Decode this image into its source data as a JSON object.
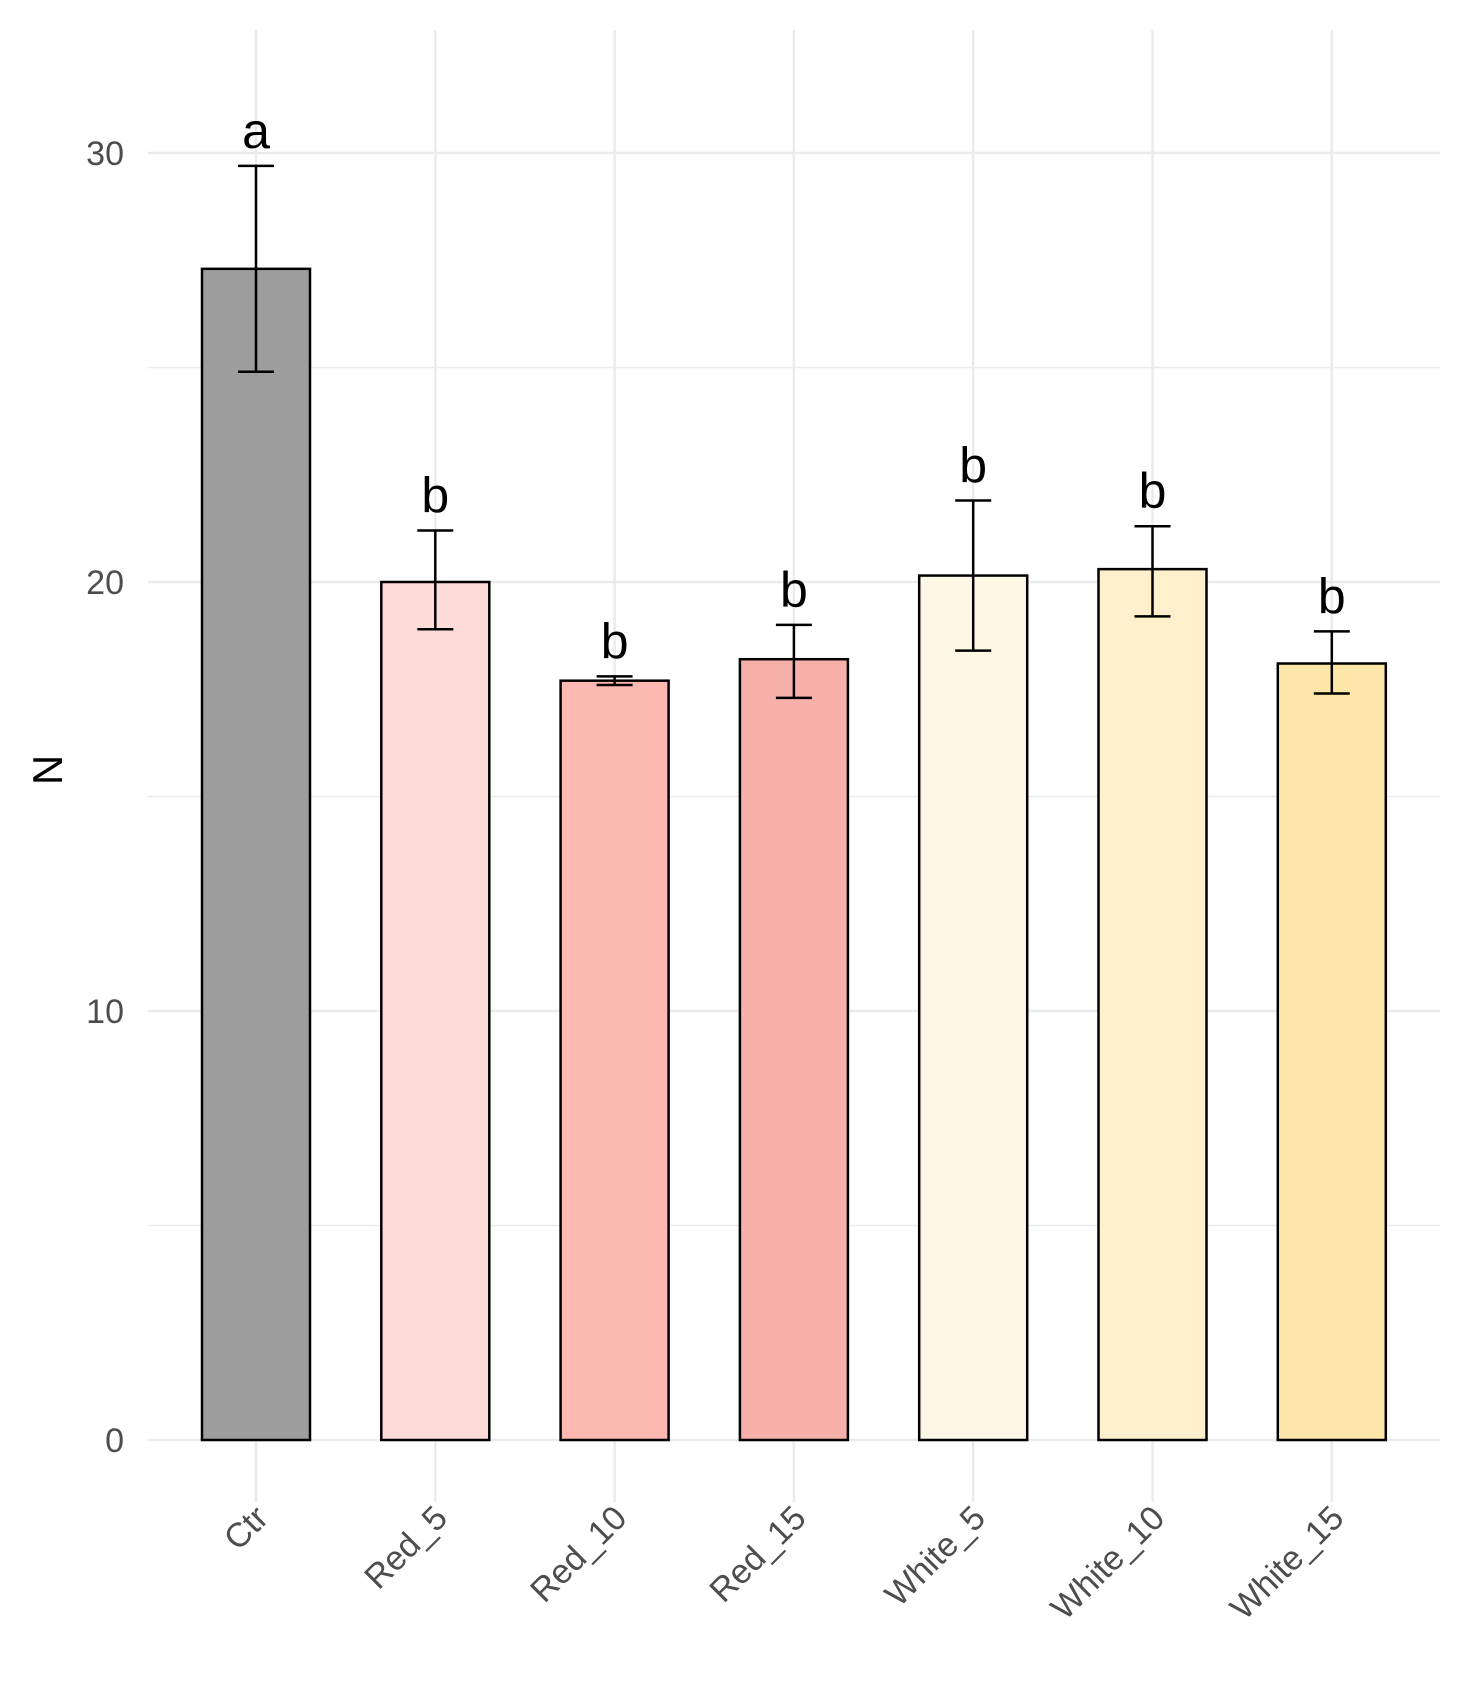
{
  "chart_data": {
    "type": "bar",
    "categories": [
      "Ctr",
      "Red_5",
      "Red_10",
      "Red_15",
      "White_5",
      "White_10",
      "White_15"
    ],
    "values": [
      27.3,
      20.0,
      17.7,
      18.2,
      20.15,
      20.3,
      18.1
    ],
    "error_low": [
      24.9,
      18.9,
      17.6,
      17.3,
      18.4,
      19.2,
      17.4
    ],
    "error_high": [
      29.7,
      21.2,
      17.8,
      19.0,
      21.9,
      21.3,
      18.85
    ],
    "significance_letters": [
      "a",
      "b",
      "b",
      "b",
      "b",
      "b",
      "b"
    ],
    "colors": [
      "#9e9e9e",
      "#fddbd9",
      "#fdb8b2",
      "#f8b1aa",
      "#fff7e6",
      "#fef0cc",
      "#fee6a8"
    ],
    "title": "",
    "xlabel": "",
    "ylabel": "N",
    "ylim": [
      0,
      32
    ],
    "yticks": [
      0,
      10,
      20,
      30
    ],
    "grid": true,
    "legend": "none"
  }
}
